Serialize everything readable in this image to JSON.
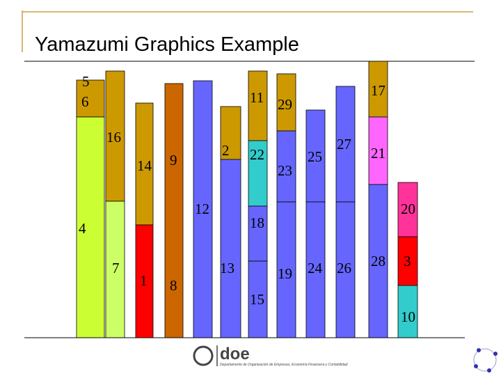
{
  "header": {
    "title": "Yamazumi Graphics Example"
  },
  "tasks": [
    "5",
    "6",
    "4",
    "16",
    "7",
    "14",
    "1",
    "9",
    "8",
    "12",
    "2",
    "13",
    "11",
    "22",
    "18",
    "15",
    "29",
    "23",
    "19",
    "25",
    "24",
    "27",
    "26",
    "17",
    "21",
    "28",
    "20",
    "3",
    "10"
  ],
  "footer": {
    "logo": "doe",
    "department": "Departamento de Organización de Empresas, Economía Financiera y Contabilidad"
  }
}
